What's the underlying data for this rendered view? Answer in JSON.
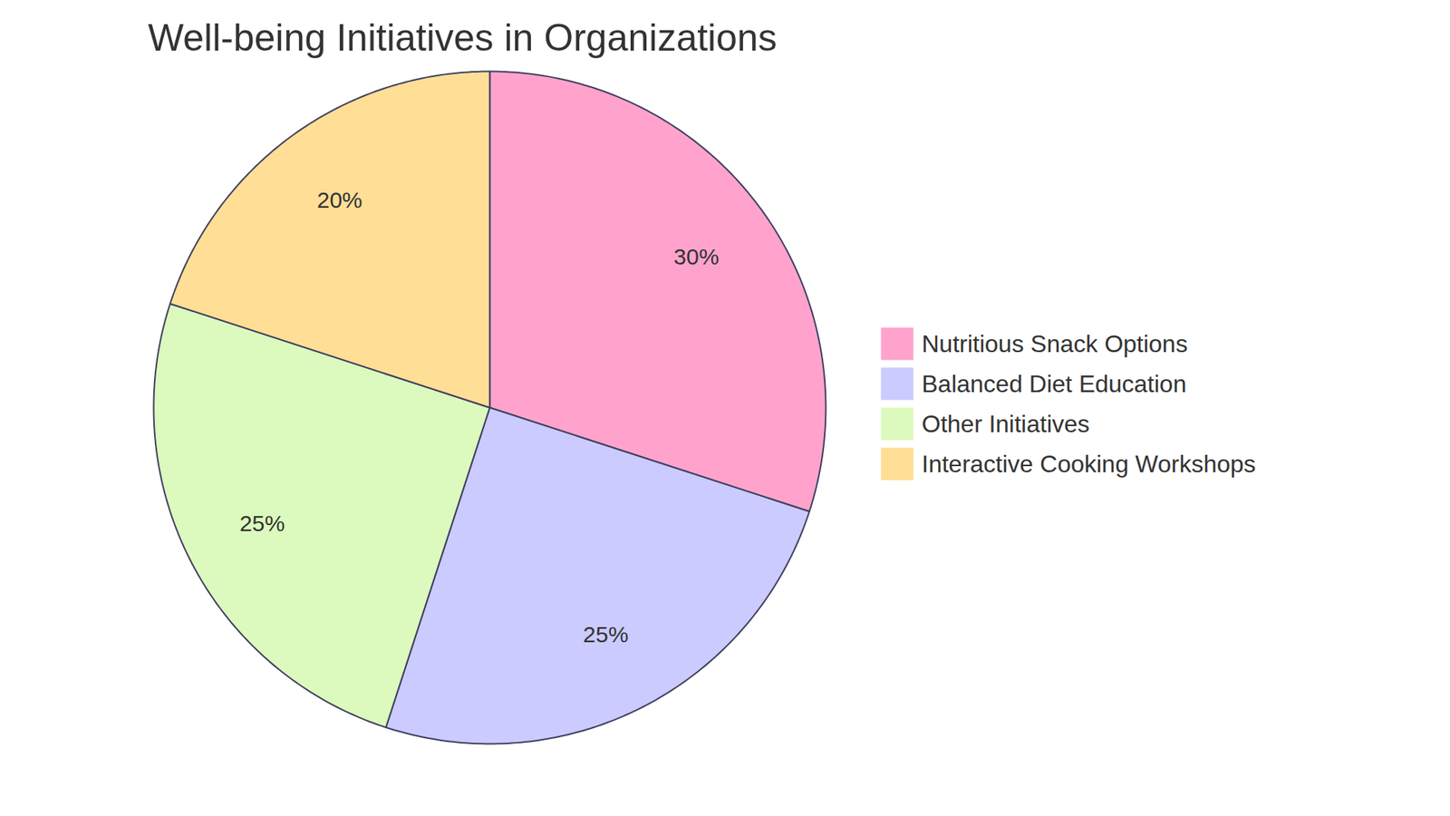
{
  "chart_data": {
    "type": "pie",
    "title": "Well-being Initiatives in Organizations",
    "categories": [
      "Nutritious Snack Options",
      "Balanced Diet Education",
      "Other Initiatives",
      "Interactive Cooking Workshops"
    ],
    "values": [
      30,
      25,
      25,
      20
    ],
    "value_labels": [
      "30%",
      "25%",
      "25%",
      "20%"
    ],
    "colors": [
      "#ffa3cd",
      "#cbcbff",
      "#dcfabd",
      "#ffde96"
    ],
    "data_labels": true,
    "legend": "right"
  }
}
